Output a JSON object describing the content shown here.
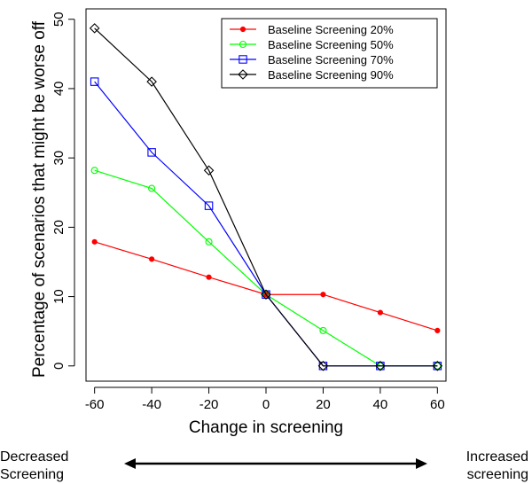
{
  "chart_data": {
    "type": "line",
    "title": "",
    "xlabel": "Change in screening",
    "ylabel": "Percentage of scenarios that might be worse off",
    "x": [
      -60,
      -40,
      -20,
      0,
      20,
      40,
      60
    ],
    "xticks": [
      -60,
      -40,
      -20,
      0,
      20,
      40,
      60
    ],
    "yticks": [
      0,
      10,
      20,
      30,
      40,
      50
    ],
    "xlim": [
      -63,
      63
    ],
    "ylim": [
      -2.2,
      51.5
    ],
    "grid": false,
    "legend_position": "top-right",
    "series": [
      {
        "name": "Baseline Screening 20%",
        "color": "#ff0000",
        "marker": "filled-circle",
        "values": [
          17.9,
          15.4,
          12.8,
          10.3,
          10.3,
          7.7,
          5.1
        ]
      },
      {
        "name": "Baseline Screening 50%",
        "color": "#00ff00",
        "marker": "open-circle",
        "values": [
          28.2,
          25.6,
          17.9,
          10.3,
          5.1,
          0,
          0
        ]
      },
      {
        "name": "Baseline Screening 70%",
        "color": "#0000ff",
        "marker": "open-square",
        "values": [
          41.0,
          30.8,
          23.1,
          10.3,
          0,
          0,
          0
        ]
      },
      {
        "name": "Baseline Screening 90%",
        "color": "#000000",
        "marker": "open-diamond",
        "values": [
          48.7,
          41.0,
          28.2,
          10.3,
          0,
          0,
          0
        ]
      }
    ]
  },
  "annotations": {
    "left_line1": "Decreased",
    "left_line2": "Screening",
    "right_line1": "Increased",
    "right_line2": "screening",
    "arrow": "double-headed-arrow"
  }
}
